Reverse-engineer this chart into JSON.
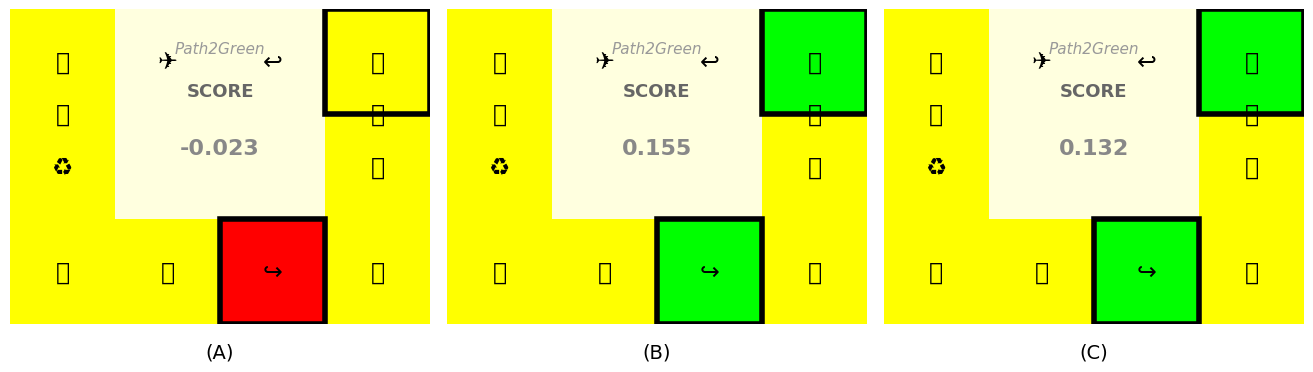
{
  "bg_color": "#ffff00",
  "white_box_color": "#f5f5f5",
  "app_name": "Path2Green",
  "score_label": "SCORE",
  "panels": [
    {
      "label": "(A)",
      "score": "-0.023",
      "tr_color": "#ffff00",
      "bm_color": "#ff0000"
    },
    {
      "label": "(B)",
      "score": "0.155",
      "tr_color": "#00ff00",
      "bm_color": "#00ff00"
    },
    {
      "label": "(C)",
      "score": "0.132",
      "tr_color": "#00ff00",
      "bm_color": "#00ff00"
    }
  ],
  "border_lw": 4,
  "icon_fontsize": 17,
  "app_name_fontsize": 11,
  "score_label_fontsize": 13,
  "score_value_fontsize": 16,
  "label_fontsize": 14
}
